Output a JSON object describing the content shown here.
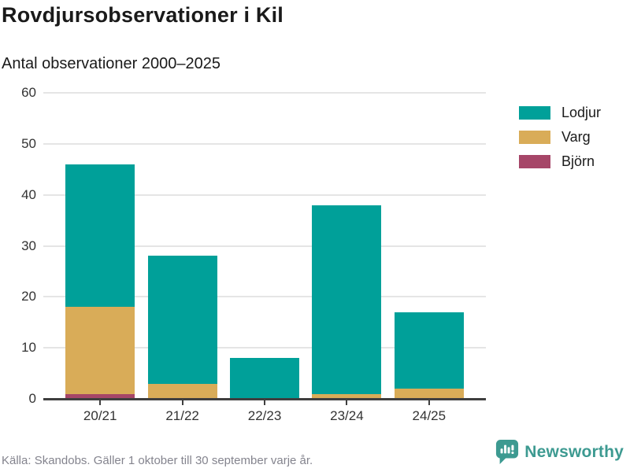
{
  "title": "Rovdjursobservationer i Kil",
  "subtitle": "Antal observationer 2000–2025",
  "footer": {
    "source_note": "Källa: Skandobs. Gäller 1 oktober till 30 september varje år."
  },
  "branding": {
    "name": "Newsworthy",
    "logo_icon": "bar-chart-speech-bubble-icon",
    "color": "#3d9a91"
  },
  "colors": {
    "lodjur": "#00a099",
    "varg": "#d9ac58",
    "bjorn": "#a64668",
    "axis": "#3f3f3f",
    "grid": "#e5e5e5",
    "tick_text": "#333333",
    "footer_text": "#84848e"
  },
  "chart_data": {
    "type": "bar",
    "stacked": true,
    "title": "Rovdjursobservationer i Kil",
    "subtitle": "Antal observationer 2000–2025",
    "categories": [
      "20/21",
      "21/22",
      "22/23",
      "23/24",
      "24/25"
    ],
    "series": [
      {
        "name": "Lodjur",
        "color": "#00a099",
        "values": [
          28,
          25,
          8,
          37,
          15
        ]
      },
      {
        "name": "Varg",
        "color": "#d9ac58",
        "values": [
          17,
          3,
          0,
          1,
          2
        ]
      },
      {
        "name": "Björn",
        "color": "#a64668",
        "values": [
          1,
          0,
          0,
          0,
          0
        ]
      }
    ],
    "stack_order_bottom_to_top": [
      "Björn",
      "Varg",
      "Lodjur"
    ],
    "totals": [
      46,
      28,
      8,
      38,
      17
    ],
    "xlabel": "",
    "ylabel": "",
    "ylim": [
      0,
      60
    ],
    "yticks": [
      0,
      10,
      20,
      30,
      40,
      50,
      60
    ],
    "grid": true,
    "legend_position": "right"
  }
}
